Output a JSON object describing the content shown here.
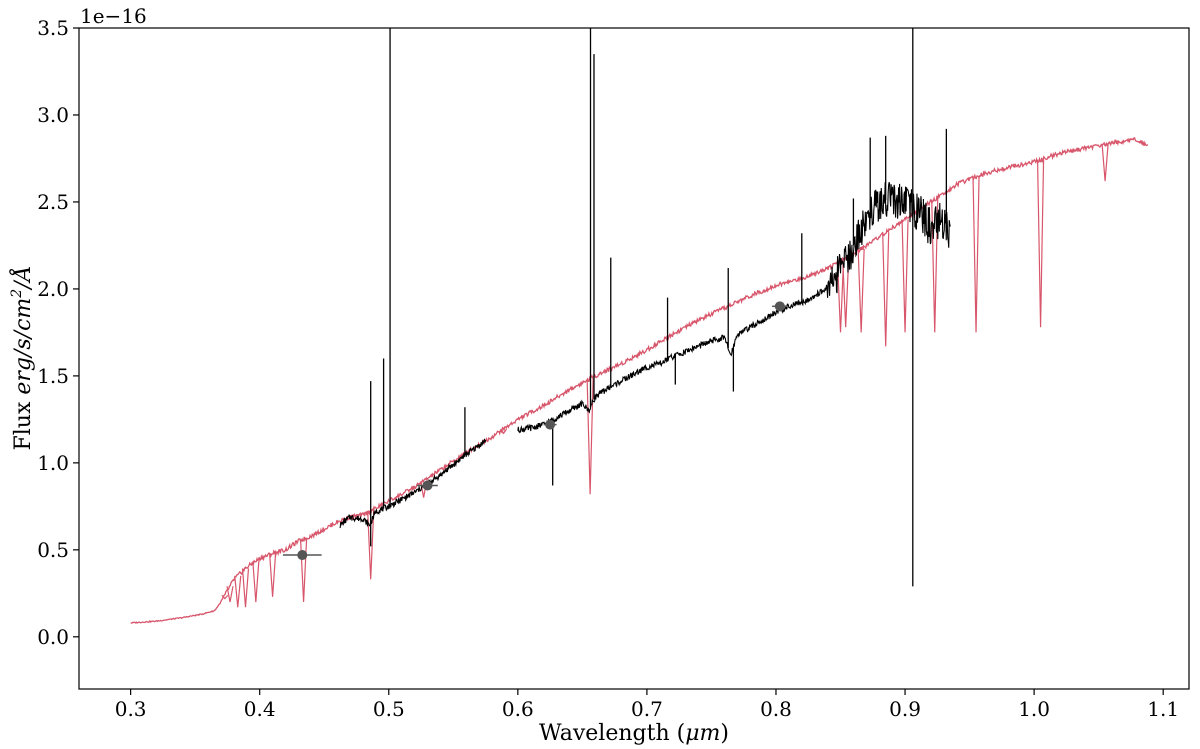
{
  "chart_data": {
    "type": "line",
    "title": "",
    "xlabel": "Wavelength (",
    "xlabel_unit": "μm",
    "xlabel_close": ")",
    "ylabel_prefix": "Flux ",
    "ylabel_units": "erg/s/cm",
    "ylabel_exp": "2",
    "ylabel_suffix": "/Å",
    "y_offset_text": "1e−16",
    "xlim": [
      0.26,
      1.12
    ],
    "ylim": [
      -0.3,
      3.5
    ],
    "xticks": [
      0.3,
      0.4,
      0.5,
      0.6,
      0.7,
      0.8,
      0.9,
      1.0,
      1.1
    ],
    "xtick_labels": [
      "0.3",
      "0.4",
      "0.5",
      "0.6",
      "0.7",
      "0.8",
      "0.9",
      "1.0",
      "1.1"
    ],
    "yticks": [
      0.0,
      0.5,
      1.0,
      1.5,
      2.0,
      2.5,
      3.0,
      3.5
    ],
    "ytick_labels": [
      "0.0",
      "0.5",
      "1.0",
      "1.5",
      "2.0",
      "2.5",
      "3.0",
      "3.5"
    ],
    "grid": false,
    "colors": {
      "model": "#d8566b",
      "observed": "#000000",
      "photometry": "#555555"
    },
    "series": [
      {
        "key": "model",
        "x": [
          0.3,
          0.32,
          0.34,
          0.355,
          0.365,
          0.37,
          0.38,
          0.39,
          0.4,
          0.41,
          0.42,
          0.43,
          0.44,
          0.45,
          0.46,
          0.47,
          0.48,
          0.5,
          0.52,
          0.54,
          0.56,
          0.58,
          0.6,
          0.62,
          0.64,
          0.66,
          0.68,
          0.7,
          0.72,
          0.74,
          0.76,
          0.78,
          0.8,
          0.82,
          0.84,
          0.86,
          0.88,
          0.9,
          0.92,
          0.94,
          0.96,
          0.98,
          1.0,
          1.02,
          1.04,
          1.06,
          1.08,
          1.088
        ],
        "y": [
          0.08,
          0.09,
          0.11,
          0.13,
          0.15,
          0.2,
          0.33,
          0.4,
          0.45,
          0.48,
          0.5,
          0.55,
          0.58,
          0.62,
          0.66,
          0.69,
          0.7,
          0.78,
          0.86,
          0.96,
          1.06,
          1.15,
          1.25,
          1.33,
          1.42,
          1.5,
          1.57,
          1.65,
          1.74,
          1.82,
          1.89,
          1.96,
          2.02,
          2.06,
          2.12,
          2.2,
          2.3,
          2.4,
          2.5,
          2.6,
          2.66,
          2.7,
          2.73,
          2.78,
          2.81,
          2.84,
          2.86,
          2.82
        ],
        "dips": [
          [
            0.373,
            0.22
          ],
          [
            0.377,
            0.2
          ],
          [
            0.383,
            0.17
          ],
          [
            0.389,
            0.17
          ],
          [
            0.397,
            0.2
          ],
          [
            0.41,
            0.23
          ],
          [
            0.434,
            0.2
          ],
          [
            0.486,
            0.33
          ],
          [
            0.527,
            0.8
          ],
          [
            0.589,
            1.17
          ],
          [
            0.656,
            0.82
          ],
          [
            0.85,
            1.75
          ],
          [
            0.854,
            1.78
          ],
          [
            0.866,
            1.75
          ],
          [
            0.885,
            1.67
          ],
          [
            0.9,
            1.75
          ],
          [
            0.923,
            1.75
          ],
          [
            0.955,
            1.75
          ],
          [
            1.005,
            1.78
          ],
          [
            1.055,
            2.62
          ]
        ]
      },
      {
        "key": "observed",
        "segments": [
          {
            "x": [
              0.462,
              0.47,
              0.475,
              0.48,
              0.485,
              0.49,
              0.5,
              0.51,
              0.52,
              0.53,
              0.54,
              0.55,
              0.56,
              0.57,
              0.575
            ],
            "y": [
              0.64,
              0.69,
              0.68,
              0.68,
              0.64,
              0.72,
              0.75,
              0.79,
              0.83,
              0.88,
              0.93,
              0.99,
              1.05,
              1.1,
              1.13
            ]
          },
          {
            "x": [
              0.6,
              0.61,
              0.62,
              0.63,
              0.64,
              0.65,
              0.655,
              0.66,
              0.67,
              0.68,
              0.69,
              0.7,
              0.71,
              0.72,
              0.73,
              0.74,
              0.75,
              0.76,
              0.765,
              0.77,
              0.78,
              0.79,
              0.8,
              0.81,
              0.82,
              0.83,
              0.84,
              0.85,
              0.86,
              0.87,
              0.88,
              0.89,
              0.9,
              0.91,
              0.92,
              0.93,
              0.935
            ],
            "y": [
              1.19,
              1.2,
              1.22,
              1.26,
              1.3,
              1.34,
              1.3,
              1.38,
              1.43,
              1.47,
              1.51,
              1.55,
              1.57,
              1.61,
              1.64,
              1.67,
              1.7,
              1.72,
              1.62,
              1.74,
              1.78,
              1.82,
              1.87,
              1.9,
              1.92,
              1.96,
              2.01,
              2.1,
              2.25,
              2.4,
              2.5,
              2.52,
              2.48,
              2.45,
              2.35,
              2.4,
              2.3
            ]
          }
        ],
        "spikes": [
          [
            0.486,
            1.47
          ],
          [
            0.496,
            1.6
          ],
          [
            0.501,
            3.5
          ],
          [
            0.559,
            1.32
          ],
          [
            0.6563,
            3.5
          ],
          [
            0.659,
            3.35
          ],
          [
            0.672,
            2.18
          ],
          [
            0.716,
            1.95
          ],
          [
            0.763,
            2.12
          ],
          [
            0.82,
            2.32
          ],
          [
            0.86,
            2.52
          ],
          [
            0.873,
            2.87
          ],
          [
            0.885,
            2.88
          ],
          [
            0.906,
            3.5
          ],
          [
            0.932,
            2.92
          ]
        ],
        "absorptions": [
          [
            0.486,
            0.52
          ],
          [
            0.627,
            0.87
          ],
          [
            0.767,
            1.41
          ],
          [
            0.722,
            1.45
          ],
          [
            0.906,
            0.29
          ]
        ]
      }
    ],
    "photometry": {
      "x": [
        0.433,
        0.53,
        0.625,
        0.803
      ],
      "y": [
        0.47,
        0.87,
        1.22,
        1.9
      ],
      "xerr": [
        0.015,
        0.008,
        0.005,
        0.006
      ]
    }
  }
}
